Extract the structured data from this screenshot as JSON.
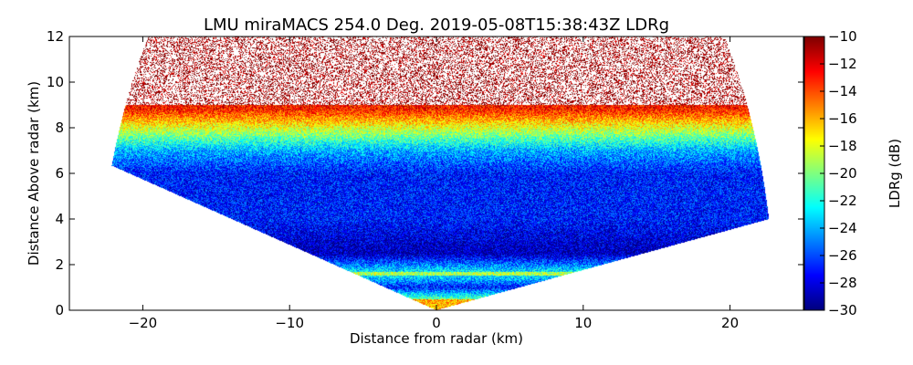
{
  "chart_data": {
    "type": "heatmap",
    "title": "LMU miraMACS 254.0 Deg. 2019-05-08T15:38:43Z  LDRg",
    "xlabel": "Distance from radar (km)",
    "ylabel": "Distance Above radar  (km)",
    "xlim": [
      -25,
      25
    ],
    "ylim": [
      0,
      12
    ],
    "xticks": [
      -20,
      -10,
      0,
      10,
      20
    ],
    "xtick_labels": [
      "−20",
      "−10",
      "0",
      "10",
      "20"
    ],
    "yticks": [
      0,
      2,
      4,
      6,
      8,
      10,
      12
    ],
    "ytick_labels": [
      "0",
      "2",
      "4",
      "6",
      "8",
      "10",
      "12"
    ],
    "colorbar": {
      "label": "LDRg (dB)",
      "range": [
        -30,
        -10
      ],
      "ticks": [
        -30,
        -28,
        -26,
        -24,
        -22,
        -20,
        -18,
        -16,
        -14,
        -12,
        -10
      ],
      "tick_labels": [
        "−30",
        "−28",
        "−26",
        "−24",
        "−22",
        "−20",
        "−18",
        "−16",
        "−14",
        "−12",
        "−10"
      ],
      "colormap": "jet"
    },
    "scan": {
      "azimuth_deg": 254.0,
      "left_edge_elevation_deg": 16,
      "right_edge_elevation_deg": 10,
      "max_range_km": 23
    },
    "ldr_profile_db": [
      {
        "height_km": 0.3,
        "ldr": -18
      },
      {
        "height_km": 1.0,
        "ldr": -27
      },
      {
        "height_km": 1.6,
        "ldr": -22
      },
      {
        "height_km": 2.5,
        "ldr": -29
      },
      {
        "height_km": 4.0,
        "ldr": -27
      },
      {
        "height_km": 6.0,
        "ldr": -27
      },
      {
        "height_km": 7.0,
        "ldr": -24
      },
      {
        "height_km": 8.0,
        "ldr": -18
      },
      {
        "height_km": 8.8,
        "ldr": -13
      },
      {
        "height_km": 10.0,
        "ldr": -11
      },
      {
        "height_km": 12.0,
        "ldr": -10
      }
    ]
  }
}
